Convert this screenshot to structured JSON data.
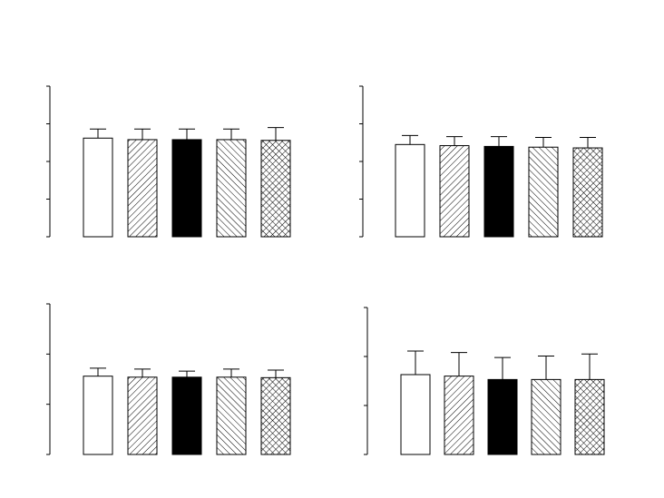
{
  "chart_data": [
    {
      "type": "bar",
      "panel": "top-left",
      "categories": [
        "",
        "",
        "",
        "",
        ""
      ],
      "values": [
        2.62,
        2.58,
        2.58,
        2.58,
        2.56
      ],
      "errors": [
        0.24,
        0.28,
        0.28,
        0.28,
        0.34
      ],
      "ylim": [
        0,
        4
      ],
      "yticks": [
        0,
        1,
        2,
        3,
        4
      ],
      "title": "",
      "xlabel": "",
      "ylabel": "",
      "grid": false,
      "legend": "none"
    },
    {
      "type": "bar",
      "panel": "top-right",
      "categories": [
        "",
        "",
        "",
        "",
        ""
      ],
      "values": [
        2.45,
        2.42,
        2.4,
        2.38,
        2.36
      ],
      "errors": [
        0.24,
        0.24,
        0.26,
        0.26,
        0.28
      ],
      "ylim": [
        0,
        4
      ],
      "yticks": [
        0,
        1,
        2,
        3,
        4
      ],
      "title": "",
      "xlabel": "",
      "ylabel": "",
      "grid": false,
      "legend": "none"
    },
    {
      "type": "bar",
      "panel": "bottom-left",
      "categories": [
        "",
        "",
        "",
        "",
        ""
      ],
      "values": [
        1.56,
        1.54,
        1.54,
        1.54,
        1.53
      ],
      "errors": [
        0.16,
        0.16,
        0.12,
        0.16,
        0.15
      ],
      "ylim": [
        0,
        3
      ],
      "yticks": [
        0,
        1,
        2,
        3
      ],
      "title": "",
      "xlabel": "",
      "ylabel": "",
      "grid": false,
      "legend": "none"
    },
    {
      "type": "bar",
      "panel": "bottom-right",
      "categories": [
        "",
        "",
        "",
        "",
        ""
      ],
      "values": [
        1.63,
        1.6,
        1.53,
        1.53,
        1.53
      ],
      "errors": [
        0.48,
        0.48,
        0.45,
        0.48,
        0.52
      ],
      "ylim": [
        0,
        3
      ],
      "yticks": [
        0,
        1,
        2,
        3
      ],
      "title": "",
      "xlabel": "",
      "ylabel": "",
      "grid": false,
      "legend": "none"
    }
  ],
  "bar_fills": [
    "white",
    "diagonal-hatch",
    "solid-black",
    "back-diagonal-hatch",
    "cross-hatch"
  ],
  "colors": {
    "ink": "#000000",
    "paper": "#ffffff"
  }
}
